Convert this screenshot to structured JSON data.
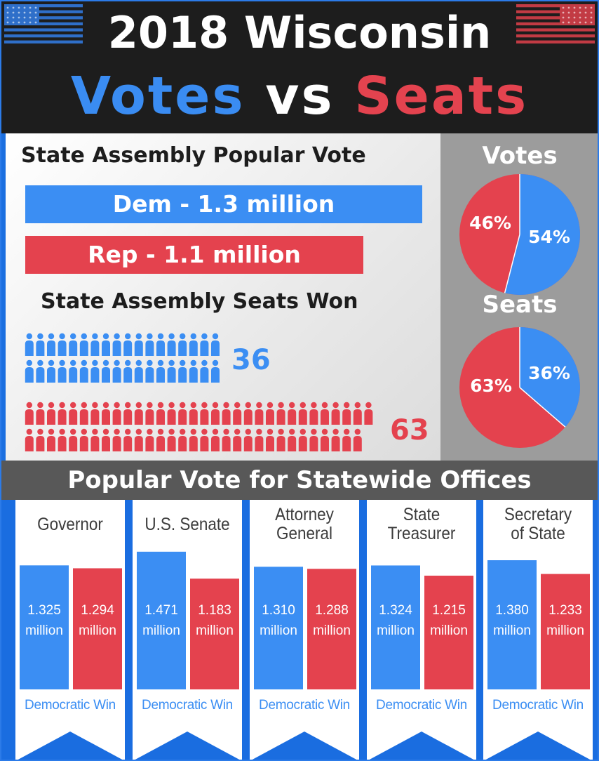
{
  "header": {
    "title_line1": "2018 Wisconsin",
    "title_votes": "Votes",
    "title_vs": "vs",
    "title_seats": "Seats"
  },
  "colors": {
    "dem": "#3b8ef3",
    "rep": "#e4424e",
    "header_bg": "#1d1d1d",
    "panel_gray": "#9c9c9c",
    "band_gray": "#585858"
  },
  "popular_vote": {
    "title": "State Assembly Popular Vote",
    "dem_label": "Dem - 1.3 million",
    "rep_label": "Rep - 1.1 million"
  },
  "seats_won": {
    "title": "State Assembly Seats Won",
    "dem_count": "36",
    "rep_count": "63"
  },
  "pies": {
    "votes_title": "Votes",
    "seats_title": "Seats"
  },
  "statewide": {
    "title": "Popular Vote for Statewide Offices"
  },
  "chart_data": [
    {
      "type": "bar",
      "title": "State Assembly Popular Vote",
      "categories": [
        "Dem",
        "Rep"
      ],
      "values": [
        1.3,
        1.1
      ],
      "unit": "million"
    },
    {
      "type": "pie",
      "title": "Votes",
      "labels": [
        "Dem",
        "Rep"
      ],
      "values": [
        54,
        46
      ],
      "value_labels": [
        "54%",
        "46%"
      ]
    },
    {
      "type": "pictogram",
      "title": "State Assembly Seats Won",
      "categories": [
        "Dem",
        "Rep"
      ],
      "values": [
        36,
        63
      ],
      "value_labels": [
        "36",
        "63"
      ]
    },
    {
      "type": "pie",
      "title": "Seats",
      "labels": [
        "Dem",
        "Rep"
      ],
      "values": [
        36,
        63
      ],
      "value_labels": [
        "36%",
        "63%"
      ]
    },
    {
      "type": "bar",
      "title": "Popular Vote for Statewide Offices",
      "offices": [
        {
          "name_lines": [
            "Governor"
          ],
          "dem": 1.325,
          "rep": 1.294,
          "dem_label": [
            "1.325",
            "million"
          ],
          "rep_label": [
            "1.294",
            "million"
          ],
          "result": "Democratic Win"
        },
        {
          "name_lines": [
            "U.S. Senate"
          ],
          "dem": 1.471,
          "rep": 1.183,
          "dem_label": [
            "1.471",
            "million"
          ],
          "rep_label": [
            "1.183",
            "million"
          ],
          "result": "Democratic Win"
        },
        {
          "name_lines": [
            "Attorney",
            "General"
          ],
          "dem": 1.31,
          "rep": 1.288,
          "dem_label": [
            "1.310",
            "million"
          ],
          "rep_label": [
            "1.288",
            "million"
          ],
          "result": "Democratic Win"
        },
        {
          "name_lines": [
            "State",
            "Treasurer"
          ],
          "dem": 1.324,
          "rep": 1.215,
          "dem_label": [
            "1.324",
            "million"
          ],
          "rep_label": [
            "1.215",
            "million"
          ],
          "result": "Democratic Win"
        },
        {
          "name_lines": [
            "Secretary",
            "of State"
          ],
          "dem": 1.38,
          "rep": 1.233,
          "dem_label": [
            "1.380",
            "million"
          ],
          "rep_label": [
            "1.233",
            "million"
          ],
          "result": "Democratic Win"
        }
      ]
    }
  ]
}
